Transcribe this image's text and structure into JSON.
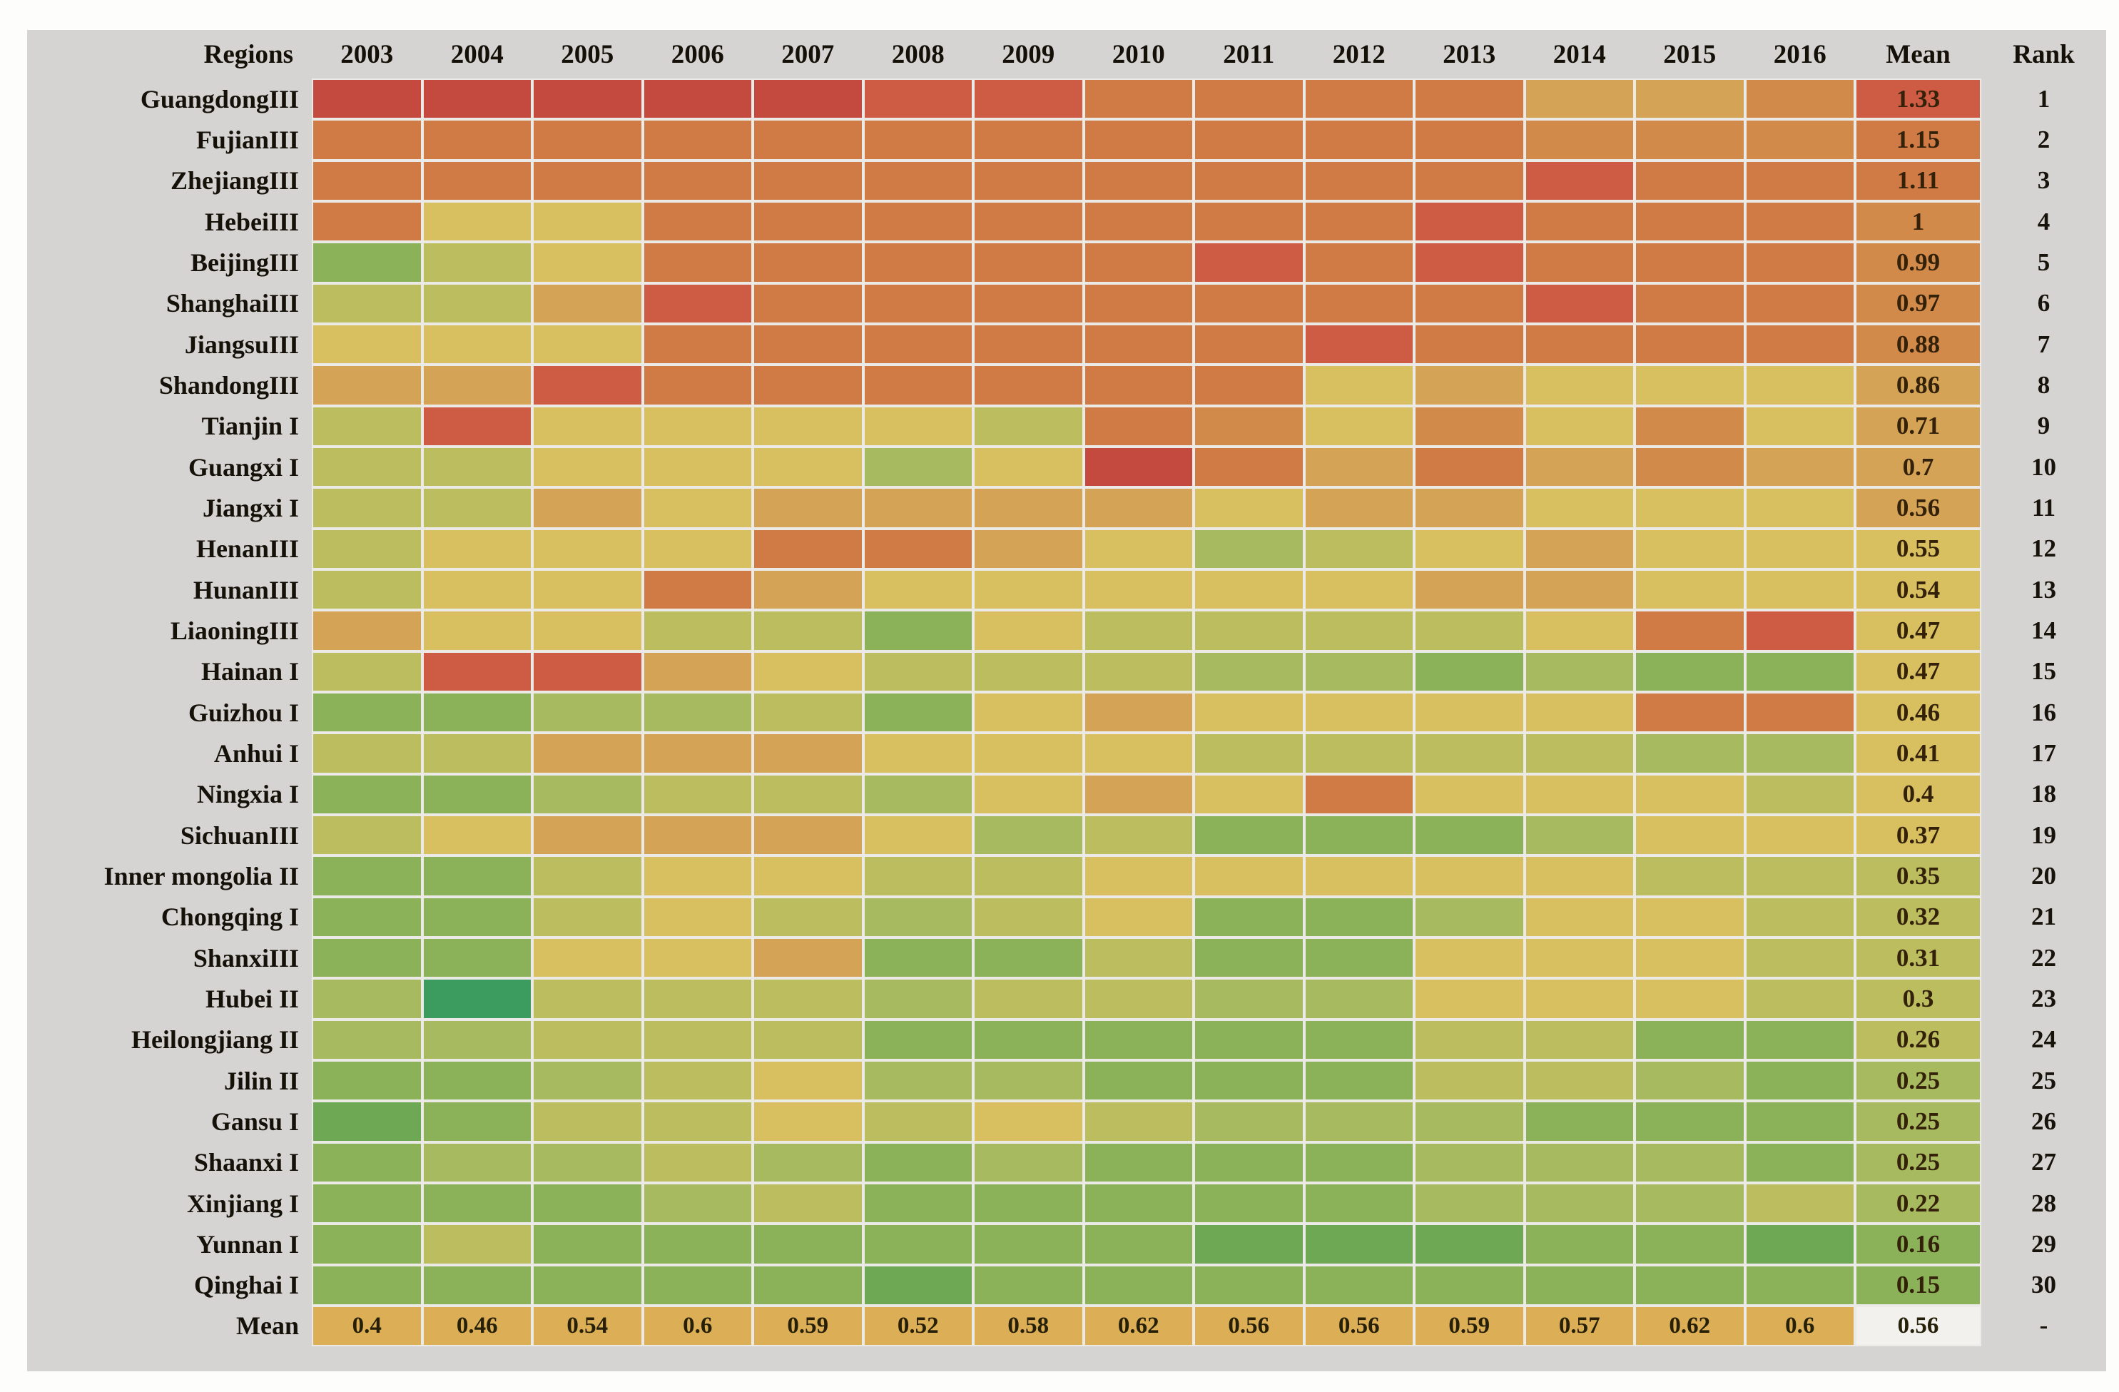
{
  "figure": {
    "description_title": "Regional heatmap table of mean values by year with overall means and ranks"
  },
  "chart_data": {
    "type": "heatmap",
    "title": "",
    "xlabel": "",
    "ylabel": "",
    "legend": "none",
    "columns_header": {
      "regions": "Regions",
      "years": [
        "2003",
        "2004",
        "2005",
        "2006",
        "2007",
        "2008",
        "2009",
        "2010",
        "2011",
        "2012",
        "2013",
        "2014",
        "2015",
        "2016"
      ],
      "mean": "Mean",
      "rank": "Rank"
    },
    "palette": {
      "r": "#c4493f",
      "ro": "#ce5b44",
      "o": "#d07b45",
      "ol": "#d28a4b",
      "oy": "#d5a355",
      "y": "#d8bf60",
      "yg": "#bcbd5f",
      "gl": "#a8ba5f",
      "g": "#8bb259",
      "gd": "#6fa855",
      "gx": "#3c9c5f"
    },
    "color_scale_note": "red = high value, green = low value",
    "rows": [
      {
        "region": "GuangdongIII",
        "cells": [
          "r",
          "r",
          "r",
          "r",
          "r",
          "ro",
          "ro",
          "o",
          "o",
          "o",
          "o",
          "oy",
          "oy",
          "ol"
        ],
        "mean": "1.33",
        "mean_color": "ro",
        "rank": "1"
      },
      {
        "region": "FujianIII",
        "cells": [
          "o",
          "o",
          "o",
          "o",
          "o",
          "o",
          "o",
          "o",
          "o",
          "o",
          "o",
          "ol",
          "ol",
          "ol"
        ],
        "mean": "1.15",
        "mean_color": "o",
        "rank": "2"
      },
      {
        "region": "ZhejiangIII",
        "cells": [
          "o",
          "o",
          "o",
          "o",
          "o",
          "o",
          "o",
          "o",
          "o",
          "o",
          "o",
          "ro",
          "o",
          "o"
        ],
        "mean": "1.11",
        "mean_color": "o",
        "rank": "3"
      },
      {
        "region": "HebeiIII",
        "cells": [
          "o",
          "y",
          "y",
          "o",
          "o",
          "o",
          "o",
          "o",
          "o",
          "o",
          "ro",
          "o",
          "o",
          "o"
        ],
        "mean": "1",
        "mean_color": "ol",
        "rank": "4"
      },
      {
        "region": "BeijingIII",
        "cells": [
          "g",
          "yg",
          "y",
          "o",
          "o",
          "o",
          "o",
          "o",
          "ro",
          "o",
          "ro",
          "o",
          "o",
          "o"
        ],
        "mean": "0.99",
        "mean_color": "ol",
        "rank": "5"
      },
      {
        "region": "ShanghaiIII",
        "cells": [
          "yg",
          "yg",
          "oy",
          "ro",
          "o",
          "o",
          "o",
          "o",
          "o",
          "o",
          "o",
          "ro",
          "o",
          "o"
        ],
        "mean": "0.97",
        "mean_color": "ol",
        "rank": "6"
      },
      {
        "region": "JiangsuIII",
        "cells": [
          "y",
          "y",
          "y",
          "o",
          "o",
          "o",
          "o",
          "o",
          "o",
          "ro",
          "o",
          "o",
          "o",
          "o"
        ],
        "mean": "0.88",
        "mean_color": "ol",
        "rank": "7"
      },
      {
        "region": "ShandongIII",
        "cells": [
          "oy",
          "oy",
          "ro",
          "o",
          "o",
          "o",
          "o",
          "o",
          "o",
          "y",
          "oy",
          "y",
          "y",
          "y"
        ],
        "mean": "0.86",
        "mean_color": "oy",
        "rank": "8"
      },
      {
        "region": "Tianjin I",
        "cells": [
          "yg",
          "ro",
          "y",
          "y",
          "y",
          "y",
          "yg",
          "o",
          "ol",
          "y",
          "ol",
          "y",
          "ol",
          "y"
        ],
        "mean": "0.71",
        "mean_color": "oy",
        "rank": "9"
      },
      {
        "region": "Guangxi I",
        "cells": [
          "yg",
          "yg",
          "y",
          "y",
          "y",
          "gl",
          "y",
          "r",
          "o",
          "oy",
          "o",
          "oy",
          "ol",
          "oy"
        ],
        "mean": "0.7",
        "mean_color": "oy",
        "rank": "10"
      },
      {
        "region": "Jiangxi I",
        "cells": [
          "yg",
          "yg",
          "oy",
          "y",
          "oy",
          "oy",
          "oy",
          "oy",
          "y",
          "oy",
          "oy",
          "y",
          "y",
          "y"
        ],
        "mean": "0.56",
        "mean_color": "oy",
        "rank": "11"
      },
      {
        "region": "HenanIII",
        "cells": [
          "yg",
          "y",
          "y",
          "y",
          "o",
          "o",
          "oy",
          "y",
          "gl",
          "yg",
          "y",
          "oy",
          "y",
          "y"
        ],
        "mean": "0.55",
        "mean_color": "y",
        "rank": "12"
      },
      {
        "region": "HunanIII",
        "cells": [
          "yg",
          "y",
          "y",
          "o",
          "oy",
          "y",
          "y",
          "y",
          "y",
          "y",
          "oy",
          "oy",
          "y",
          "y"
        ],
        "mean": "0.54",
        "mean_color": "y",
        "rank": "13"
      },
      {
        "region": "LiaoningIII",
        "cells": [
          "oy",
          "y",
          "y",
          "yg",
          "yg",
          "g",
          "y",
          "yg",
          "yg",
          "yg",
          "yg",
          "y",
          "o",
          "ro"
        ],
        "mean": "0.47",
        "mean_color": "y",
        "rank": "14"
      },
      {
        "region": "Hainan I",
        "cells": [
          "yg",
          "ro",
          "ro",
          "oy",
          "y",
          "yg",
          "yg",
          "yg",
          "gl",
          "gl",
          "g",
          "gl",
          "g",
          "g"
        ],
        "mean": "0.47",
        "mean_color": "y",
        "rank": "15"
      },
      {
        "region": "Guizhou I",
        "cells": [
          "g",
          "g",
          "gl",
          "gl",
          "yg",
          "g",
          "y",
          "oy",
          "y",
          "y",
          "y",
          "y",
          "o",
          "o"
        ],
        "mean": "0.46",
        "mean_color": "y",
        "rank": "16"
      },
      {
        "region": "Anhui I",
        "cells": [
          "yg",
          "yg",
          "oy",
          "oy",
          "oy",
          "y",
          "y",
          "y",
          "yg",
          "yg",
          "yg",
          "yg",
          "gl",
          "gl"
        ],
        "mean": "0.41",
        "mean_color": "y",
        "rank": "17"
      },
      {
        "region": "Ningxia I",
        "cells": [
          "g",
          "g",
          "gl",
          "yg",
          "yg",
          "gl",
          "y",
          "oy",
          "y",
          "o",
          "y",
          "y",
          "y",
          "yg"
        ],
        "mean": "0.4",
        "mean_color": "y",
        "rank": "18"
      },
      {
        "region": "SichuanIII",
        "cells": [
          "yg",
          "y",
          "oy",
          "oy",
          "oy",
          "y",
          "gl",
          "yg",
          "g",
          "g",
          "g",
          "gl",
          "y",
          "y"
        ],
        "mean": "0.37",
        "mean_color": "y",
        "rank": "19"
      },
      {
        "region": "Inner mongolia II",
        "cells": [
          "g",
          "g",
          "yg",
          "y",
          "y",
          "yg",
          "yg",
          "y",
          "y",
          "y",
          "y",
          "y",
          "yg",
          "yg"
        ],
        "mean": "0.35",
        "mean_color": "yg",
        "rank": "20"
      },
      {
        "region": "Chongqing I",
        "cells": [
          "g",
          "g",
          "yg",
          "y",
          "yg",
          "gl",
          "yg",
          "y",
          "g",
          "g",
          "gl",
          "y",
          "y",
          "yg"
        ],
        "mean": "0.32",
        "mean_color": "yg",
        "rank": "21"
      },
      {
        "region": "ShanxiIII",
        "cells": [
          "g",
          "g",
          "y",
          "y",
          "oy",
          "g",
          "g",
          "yg",
          "g",
          "g",
          "y",
          "y",
          "y",
          "yg"
        ],
        "mean": "0.31",
        "mean_color": "yg",
        "rank": "22"
      },
      {
        "region": "Hubei II",
        "cells": [
          "gl",
          "gx",
          "yg",
          "yg",
          "yg",
          "gl",
          "yg",
          "yg",
          "gl",
          "gl",
          "y",
          "y",
          "y",
          "yg"
        ],
        "mean": "0.3",
        "mean_color": "yg",
        "rank": "23"
      },
      {
        "region": "Heilongjiang II",
        "cells": [
          "gl",
          "gl",
          "yg",
          "yg",
          "yg",
          "g",
          "g",
          "g",
          "g",
          "g",
          "yg",
          "yg",
          "g",
          "g"
        ],
        "mean": "0.26",
        "mean_color": "yg",
        "rank": "24"
      },
      {
        "region": "Jilin II",
        "cells": [
          "g",
          "g",
          "gl",
          "yg",
          "y",
          "gl",
          "gl",
          "g",
          "g",
          "g",
          "yg",
          "yg",
          "gl",
          "g"
        ],
        "mean": "0.25",
        "mean_color": "gl",
        "rank": "25"
      },
      {
        "region": "Gansu I",
        "cells": [
          "gd",
          "g",
          "yg",
          "yg",
          "y",
          "yg",
          "y",
          "yg",
          "gl",
          "gl",
          "gl",
          "g",
          "g",
          "g"
        ],
        "mean": "0.25",
        "mean_color": "gl",
        "rank": "26"
      },
      {
        "region": "Shaanxi I",
        "cells": [
          "g",
          "gl",
          "gl",
          "yg",
          "gl",
          "g",
          "gl",
          "g",
          "g",
          "g",
          "gl",
          "gl",
          "gl",
          "g"
        ],
        "mean": "0.25",
        "mean_color": "gl",
        "rank": "27"
      },
      {
        "region": "Xinjiang I",
        "cells": [
          "g",
          "g",
          "g",
          "gl",
          "yg",
          "g",
          "g",
          "g",
          "g",
          "g",
          "gl",
          "gl",
          "gl",
          "yg"
        ],
        "mean": "0.22",
        "mean_color": "gl",
        "rank": "28"
      },
      {
        "region": "Yunnan I",
        "cells": [
          "g",
          "yg",
          "g",
          "g",
          "g",
          "g",
          "g",
          "g",
          "gd",
          "gd",
          "gd",
          "g",
          "g",
          "gd"
        ],
        "mean": "0.16",
        "mean_color": "g",
        "rank": "29"
      },
      {
        "region": "Qinghai I",
        "cells": [
          "g",
          "g",
          "g",
          "g",
          "g",
          "gd",
          "g",
          "g",
          "g",
          "g",
          "g",
          "g",
          "g",
          "g"
        ],
        "mean": "0.15",
        "mean_color": "g",
        "rank": "30"
      }
    ],
    "footer": {
      "label": "Mean",
      "values": [
        "0.4",
        "0.46",
        "0.54",
        "0.6",
        "0.59",
        "0.52",
        "0.58",
        "0.62",
        "0.56",
        "0.56",
        "0.59",
        "0.57",
        "0.62",
        "0.6"
      ],
      "overall_mean": "0.56",
      "rank": "-",
      "cell_bg": "#dcae55",
      "overall_bg": "#f2f1ed"
    },
    "layout": {
      "panel_bg": "#d5d4d2",
      "page_bg": "#fdfdfc",
      "gridline_color": "#eceae6"
    }
  }
}
